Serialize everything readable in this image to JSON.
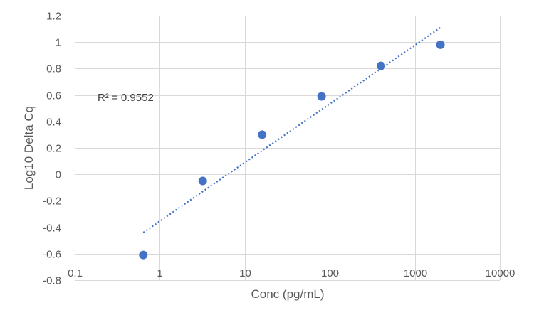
{
  "chart_data": {
    "type": "scatter",
    "xlabel": "Conc (pg/mL)",
    "ylabel": "Log10 Delta Cq",
    "x_scale": "log",
    "xlim": [
      0.1,
      10000
    ],
    "ylim": [
      -0.8,
      1.2
    ],
    "x_ticks": [
      "0.1",
      "1",
      "10",
      "100",
      "1000",
      "10000"
    ],
    "y_ticks": [
      "1.2",
      "1",
      "0.8",
      "0.6",
      "0.4",
      "0.2",
      "0",
      "-0.2",
      "-0.4",
      "-0.6",
      "-0.8"
    ],
    "grid": true,
    "series": [
      {
        "color": "#4472c4",
        "points": [
          {
            "x": 0.64,
            "y": -0.61
          },
          {
            "x": 3.2,
            "y": -0.05
          },
          {
            "x": 16,
            "y": 0.3
          },
          {
            "x": 80,
            "y": 0.59
          },
          {
            "x": 400,
            "y": 0.82
          },
          {
            "x": 2000,
            "y": 0.98
          }
        ]
      }
    ],
    "trendline": {
      "type": "logarithmic",
      "style": "dotted",
      "color": "#4472c4",
      "x_range": [
        0.64,
        2000
      ],
      "y_at_start": -0.44,
      "y_at_end": 1.11
    },
    "annotation": "R² = 0.9552"
  }
}
